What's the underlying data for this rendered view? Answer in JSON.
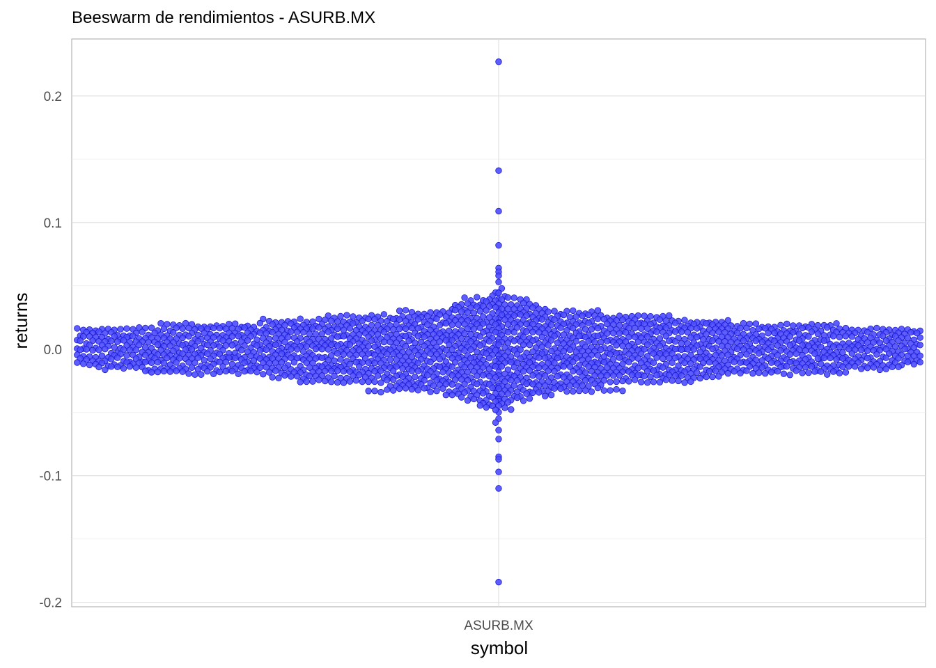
{
  "chart_data": {
    "type": "scatter",
    "subtype": "beeswarm",
    "title": "Beeswarm de rendimientos - ASURB.MX",
    "xlabel": "symbol",
    "ylabel": "returns",
    "categories": [
      "ASURB.MX"
    ],
    "ylim": [
      -0.2035,
      0.245
    ],
    "yticks": [
      -0.2,
      -0.1,
      0.0,
      0.1,
      0.2
    ],
    "ytick_labels": [
      "-0.2",
      "-0.1",
      "0.0",
      "0.1",
      "0.2"
    ],
    "grid": true,
    "legend": "none",
    "point_fill": "#4d4dff",
    "point_stroke": "#1a1acc",
    "series": [
      {
        "category": "ASURB.MX",
        "outliers": [
          0.227,
          0.141,
          0.109,
          0.082,
          0.064,
          0.061,
          0.058,
          0.053,
          0.048,
          -0.055,
          -0.058,
          -0.064,
          -0.071,
          -0.085,
          -0.087,
          -0.097,
          -0.11,
          -0.184
        ],
        "distribution": {
          "count": 2500,
          "center": 0.0,
          "spread": 0.016
        }
      }
    ]
  }
}
